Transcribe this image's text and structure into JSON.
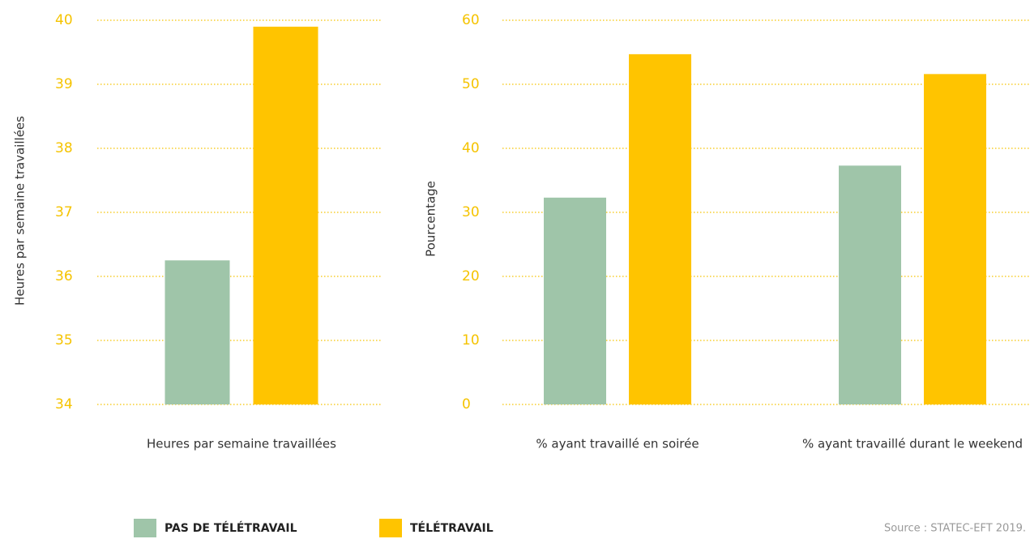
{
  "chart_data": [
    {
      "type": "bar",
      "ylabel": "Heures par semaine travaillées",
      "categories": [
        "Heures par semaine travaillées"
      ],
      "series": [
        {
          "name": "PAS DE TÉLÉTRAVAIL",
          "color": "#9fc5a9",
          "values": [
            36.25
          ]
        },
        {
          "name": "TÉLÉTRAVAIL",
          "color": "#ffc400",
          "values": [
            39.9
          ]
        }
      ],
      "ylim": [
        34,
        40
      ],
      "yticks": [
        34,
        35,
        36,
        37,
        38,
        39,
        40
      ],
      "grid": true
    },
    {
      "type": "bar",
      "ylabel": "Pourcentage",
      "categories": [
        "% ayant travaillé en soirée",
        "% ayant travaillé durant le weekend"
      ],
      "series": [
        {
          "name": "PAS DE TÉLÉTRAVAIL",
          "color": "#9fc5a9",
          "values": [
            32.3,
            37.3
          ]
        },
        {
          "name": "TÉLÉTRAVAIL",
          "color": "#ffc400",
          "values": [
            54.7,
            51.6
          ]
        }
      ],
      "ylim": [
        0,
        60
      ],
      "yticks": [
        0,
        10,
        20,
        30,
        40,
        50,
        60
      ],
      "grid": true
    }
  ],
  "source": "Source : STATEC-EFT 2019."
}
